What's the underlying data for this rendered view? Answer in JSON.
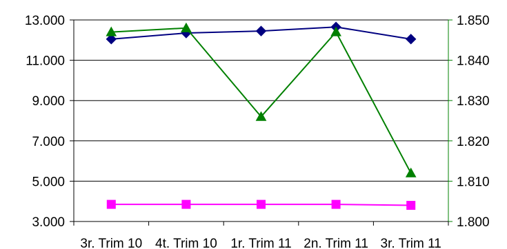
{
  "chart_data": {
    "type": "line",
    "title": "",
    "xlabel": "",
    "ylabel": "",
    "categories": [
      "3r. Trim 10",
      "4t. Trim 10",
      "1r. Trim 11",
      "2n. Trim 11",
      "3r. Trim 11"
    ],
    "y_left": {
      "ticks": [
        "13.000",
        "11.000",
        "9.000",
        "7.000",
        "5.000",
        "3.000"
      ],
      "tick_values": [
        13000,
        11000,
        9000,
        7000,
        5000,
        3000
      ],
      "range": [
        3000,
        13000
      ]
    },
    "y_right": {
      "ticks": [
        "1.850",
        "1.840",
        "1.830",
        "1.820",
        "1.810",
        "1.800"
      ],
      "tick_values": [
        1850,
        1840,
        1830,
        1820,
        1810,
        1800
      ],
      "range": [
        1800,
        1850
      ],
      "axis_color": "#008000"
    },
    "grid": "horizontal",
    "legend": "none",
    "series": [
      {
        "axis": "left",
        "marker": "diamond",
        "color": "#000080",
        "values": [
          12050,
          12350,
          12450,
          12650,
          12050
        ]
      },
      {
        "axis": "left",
        "marker": "square",
        "color": "#FF00FF",
        "values": [
          3850,
          3850,
          3850,
          3850,
          3800
        ]
      },
      {
        "axis": "right",
        "marker": "triangle",
        "color": "#008000",
        "values": [
          1847,
          1848,
          1826,
          1847,
          1812
        ]
      }
    ]
  }
}
